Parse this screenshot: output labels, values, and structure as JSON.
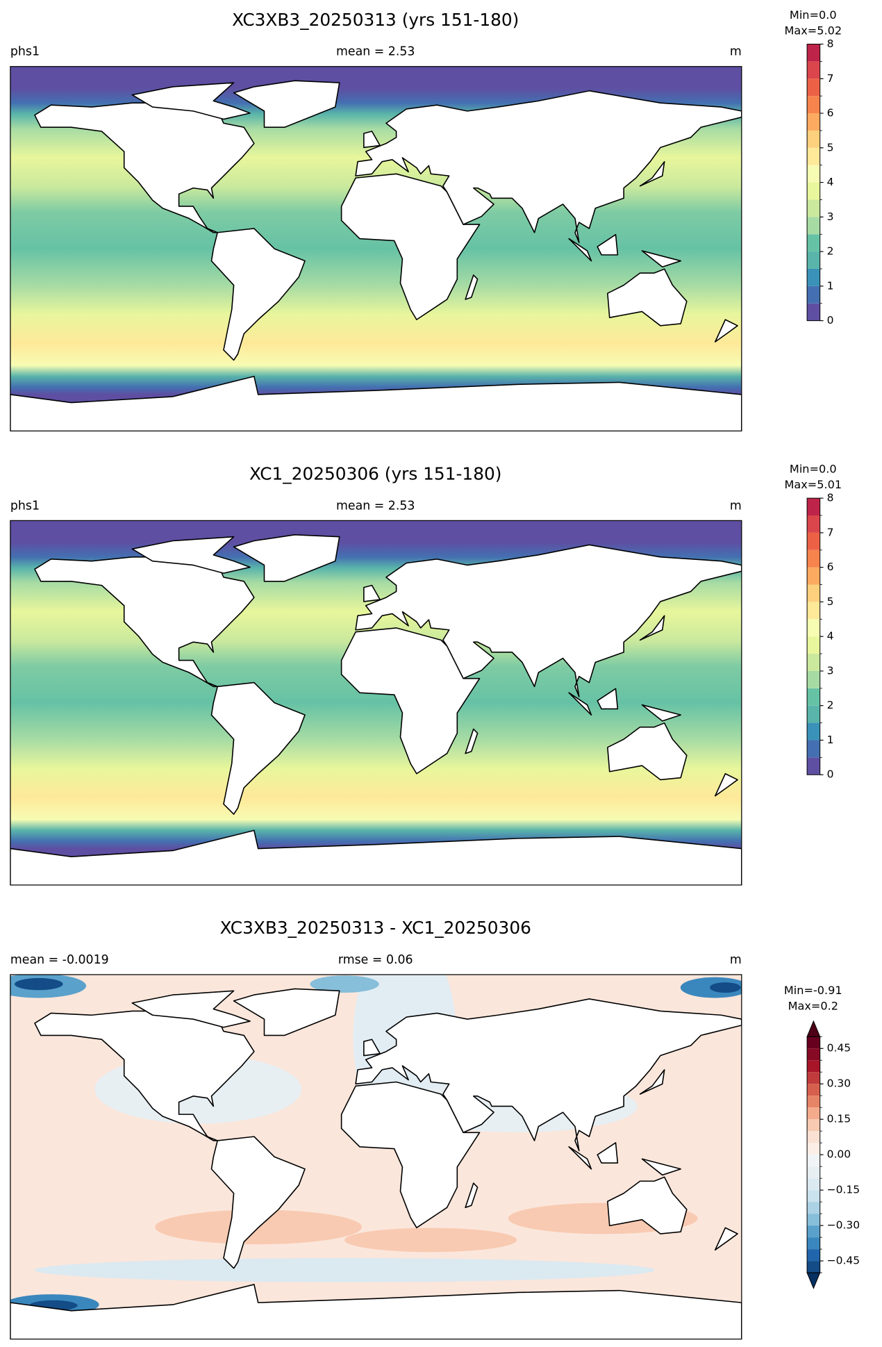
{
  "panels": [
    {
      "title": "XC3XB3_20250313 (yrs 151-180)",
      "left_label": "phs1",
      "center_label": "mean = 2.53",
      "right_label": "m",
      "min_label": "Min=0.0",
      "max_label": "Max=5.02",
      "colorbar": {
        "lim": [
          0,
          8
        ],
        "ticks": [
          0,
          1,
          2,
          3,
          4,
          5,
          6,
          7,
          8
        ],
        "levels": [
          0,
          0.5,
          1,
          1.5,
          2,
          2.5,
          3,
          3.5,
          4,
          4.5,
          5,
          5.5,
          6,
          6.5,
          7,
          7.5,
          8
        ],
        "colors": [
          "#5e4fa2",
          "#4470b1",
          "#3b92b8",
          "#59b4aa",
          "#66c2a5",
          "#a6dba4",
          "#cae99d",
          "#e8f69c",
          "#f7fcb3",
          "#fee999",
          "#fdd07e",
          "#fcaa5f",
          "#f7834d",
          "#ec6145",
          "#da464c",
          "#be2449"
        ],
        "extend": "neither"
      }
    },
    {
      "title": "XC1_20250306 (yrs 151-180)",
      "left_label": "phs1",
      "center_label": "mean = 2.53",
      "right_label": "m",
      "min_label": "Min=0.0",
      "max_label": "Max=5.01",
      "colorbar": {
        "lim": [
          0,
          8
        ],
        "ticks": [
          0,
          1,
          2,
          3,
          4,
          5,
          6,
          7,
          8
        ],
        "levels": [
          0,
          0.5,
          1,
          1.5,
          2,
          2.5,
          3,
          3.5,
          4,
          4.5,
          5,
          5.5,
          6,
          6.5,
          7,
          7.5,
          8
        ],
        "colors": [
          "#5e4fa2",
          "#4470b1",
          "#3b92b8",
          "#59b4aa",
          "#66c2a5",
          "#a6dba4",
          "#cae99d",
          "#e8f69c",
          "#f7fcb3",
          "#fee999",
          "#fdd07e",
          "#fcaa5f",
          "#f7834d",
          "#ec6145",
          "#da464c",
          "#be2449"
        ],
        "extend": "neither"
      }
    },
    {
      "title": "XC3XB3_20250313 - XC1_20250306",
      "left_label": "mean = -0.0019",
      "center_label": "rmse = 0.06",
      "right_label": "m",
      "min_label": "Min=-0.91",
      "max_label": "Max=0.2",
      "colorbar": {
        "lim": [
          -0.5,
          0.5
        ],
        "ticks": [
          {
            "value": -0.45,
            "label": "−0.45"
          },
          {
            "value": -0.3,
            "label": "−0.30"
          },
          {
            "value": -0.15,
            "label": "−0.15"
          },
          {
            "value": 0,
            "label": "0.00"
          },
          0.15,
          {
            "value": 0.3,
            "label": "0.30"
          },
          0.45
        ],
        "levels": [
          -0.5,
          -0.45,
          -0.4,
          -0.35,
          -0.3,
          -0.25,
          -0.2,
          -0.15,
          -0.1,
          -0.05,
          0,
          0.05,
          0.1,
          0.15,
          0.2,
          0.25,
          0.3,
          0.35,
          0.4,
          0.45,
          0.5
        ],
        "colors": [
          "#134c87",
          "#2166ac",
          "#3a87bd",
          "#5aa1cb",
          "#87beda",
          "#abd2e5",
          "#c9e2ee",
          "#dbe9f1",
          "#e7eff3",
          "#f1f4f6",
          "#fbeee6",
          "#fbe1d3",
          "#f8cab1",
          "#f4ab8c",
          "#e68467",
          "#d6604d",
          "#c13b3c",
          "#a81529",
          "#870a24",
          "#67001f"
        ],
        "under_color": "#053061",
        "over_color": "#4d0016",
        "extend": "both"
      }
    }
  ]
}
